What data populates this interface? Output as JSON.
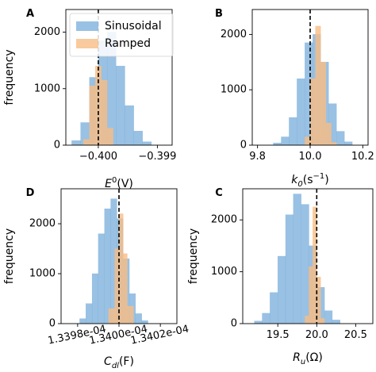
{
  "chart_data": [
    {
      "type": "bar",
      "panel": "A",
      "ylabel": "frequency",
      "xlabel": "E^0(V)",
      "xlabel_main": "E",
      "xlabel_sup": "0",
      "xlabel_rest": "(V)",
      "xticks": [
        {
          "value": -0.4,
          "label": "−0.400"
        },
        {
          "value": -0.399,
          "label": "−0.399"
        }
      ],
      "yticks": [
        {
          "value": 0,
          "label": "0"
        },
        {
          "value": 1000,
          "label": "1000"
        },
        {
          "value": 2000,
          "label": "2000"
        }
      ],
      "xlim": [
        -0.40055,
        -0.39875
      ],
      "ylim": [
        0,
        2400
      ],
      "reference_line": -0.4,
      "legend": {
        "position": "top-left",
        "entries": [
          "Sinusoidal",
          "Ramped"
        ]
      },
      "series": [
        {
          "name": "Sinusoidal",
          "color": "#7fb1dc",
          "bins": [
            {
              "x0": -0.40045,
              "x1": -0.4003,
              "value": 80
            },
            {
              "x0": -0.4003,
              "x1": -0.40015,
              "value": 400
            },
            {
              "x0": -0.40015,
              "x1": -0.4,
              "value": 1200
            },
            {
              "x0": -0.4,
              "x1": -0.39985,
              "value": 1850
            },
            {
              "x0": -0.39985,
              "x1": -0.3997,
              "value": 2000
            },
            {
              "x0": -0.3997,
              "x1": -0.39955,
              "value": 1400
            },
            {
              "x0": -0.39955,
              "x1": -0.3994,
              "value": 700
            },
            {
              "x0": -0.3994,
              "x1": -0.39925,
              "value": 250
            },
            {
              "x0": -0.39925,
              "x1": -0.3991,
              "value": 60
            }
          ]
        },
        {
          "name": "Ramped",
          "color": "#f7bd84",
          "bins": [
            {
              "x0": -0.40025,
              "x1": -0.40015,
              "value": 100
            },
            {
              "x0": -0.40015,
              "x1": -0.40005,
              "value": 1050
            },
            {
              "x0": -0.40005,
              "x1": -0.39995,
              "value": 1400
            },
            {
              "x0": -0.39995,
              "x1": -0.39985,
              "value": 1150
            },
            {
              "x0": -0.39985,
              "x1": -0.39975,
              "value": 300
            }
          ]
        }
      ]
    },
    {
      "type": "bar",
      "panel": "B",
      "ylabel": "",
      "xlabel": "k_0(s^-1)",
      "xlabel_main": "k",
      "xlabel_sub": "0",
      "xlabel_rest": "(s",
      "xlabel_sup": "−1",
      "xlabel_end": ")",
      "xticks": [
        {
          "value": 9.8,
          "label": "9.8"
        },
        {
          "value": 10.0,
          "label": "10.0"
        },
        {
          "value": 10.2,
          "label": "10.2"
        }
      ],
      "yticks": [
        {
          "value": 0,
          "label": "0"
        },
        {
          "value": 1000,
          "label": "1000"
        },
        {
          "value": 2000,
          "label": "2000"
        }
      ],
      "xlim": [
        9.78,
        10.22
      ],
      "ylim": [
        0,
        2450
      ],
      "reference_line": 10.0,
      "series": [
        {
          "name": "",
          "color": "#7fb1dc",
          "bins": [
            {
              "x0": 9.86,
              "x1": 9.89,
              "value": 40
            },
            {
              "x0": 9.89,
              "x1": 9.92,
              "value": 150
            },
            {
              "x0": 9.92,
              "x1": 9.95,
              "value": 500
            },
            {
              "x0": 9.95,
              "x1": 9.98,
              "value": 1200
            },
            {
              "x0": 9.98,
              "x1": 10.01,
              "value": 1850
            },
            {
              "x0": 10.01,
              "x1": 10.04,
              "value": 2000
            },
            {
              "x0": 10.04,
              "x1": 10.07,
              "value": 1500
            },
            {
              "x0": 10.07,
              "x1": 10.1,
              "value": 750
            },
            {
              "x0": 10.1,
              "x1": 10.13,
              "value": 250
            },
            {
              "x0": 10.13,
              "x1": 10.16,
              "value": 60
            }
          ]
        },
        {
          "name": "",
          "color": "#f7bd84",
          "bins": [
            {
              "x0": 9.98,
              "x1": 10.0,
              "value": 150
            },
            {
              "x0": 10.0,
              "x1": 10.02,
              "value": 1200
            },
            {
              "x0": 10.02,
              "x1": 10.04,
              "value": 2150
            },
            {
              "x0": 10.04,
              "x1": 10.06,
              "value": 1500
            },
            {
              "x0": 10.06,
              "x1": 10.08,
              "value": 400
            },
            {
              "x0": 10.08,
              "x1": 10.1,
              "value": 50
            }
          ]
        }
      ]
    },
    {
      "type": "bar",
      "panel": "D",
      "ylabel": "frequency",
      "xlabel": "C_dl(F)",
      "xlabel_main": "C",
      "xlabel_sub": "dl",
      "xlabel_rest": "(F)",
      "xticks": [
        {
          "value": 0.00013398,
          "label": "1.3398e-04"
        },
        {
          "value": 0.000134,
          "label": "1.3400e-04"
        },
        {
          "value": 0.00013402,
          "label": "1.3402e-04"
        }
      ],
      "yticks": [
        {
          "value": 0,
          "label": "0"
        },
        {
          "value": 1000,
          "label": "1000"
        },
        {
          "value": 2000,
          "label": "2000"
        }
      ],
      "xlim": [
        0.000133972,
        0.000134028
      ],
      "ylim": [
        0,
        2700
      ],
      "reference_line": 0.000134,
      "series": [
        {
          "name": "",
          "color": "#7fb1dc",
          "bins": [
            {
              "x0": 0.000133981,
              "x1": 0.000133984,
              "value": 100
            },
            {
              "x0": 0.000133984,
              "x1": 0.000133987,
              "value": 400
            },
            {
              "x0": 0.000133987,
              "x1": 0.00013399,
              "value": 1000
            },
            {
              "x0": 0.00013399,
              "x1": 0.000133993,
              "value": 1800
            },
            {
              "x0": 0.000133993,
              "x1": 0.000133996,
              "value": 2300
            },
            {
              "x0": 0.000133996,
              "x1": 0.000133999,
              "value": 2500
            },
            {
              "x0": 0.000133999,
              "x1": 0.000134002,
              "value": 2100
            },
            {
              "x0": 0.000134002,
              "x1": 0.000134005,
              "value": 1300
            },
            {
              "x0": 0.000134005,
              "x1": 0.000134008,
              "value": 600
            },
            {
              "x0": 0.000134008,
              "x1": 0.000134011,
              "value": 200
            },
            {
              "x0": 0.000134011,
              "x1": 0.000134014,
              "value": 60
            }
          ]
        },
        {
          "name": "",
          "color": "#f7bd84",
          "bins": [
            {
              "x0": 0.000133995,
              "x1": 0.000133998,
              "value": 300
            },
            {
              "x0": 0.000133998,
              "x1": 0.000134,
              "value": 1500
            },
            {
              "x0": 0.000134,
              "x1": 0.000134002,
              "value": 2200
            },
            {
              "x0": 0.000134002,
              "x1": 0.000134004,
              "value": 1400
            },
            {
              "x0": 0.000134004,
              "x1": 0.000134007,
              "value": 350
            }
          ]
        }
      ]
    },
    {
      "type": "bar",
      "panel": "C",
      "ylabel": "frequency",
      "xlabel": "R_u(Ω)",
      "xlabel_main": "R",
      "xlabel_sub": "u",
      "xlabel_rest": "(Ω)",
      "xticks": [
        {
          "value": 19.5,
          "label": "19.5"
        },
        {
          "value": 20.0,
          "label": "20.0"
        },
        {
          "value": 20.5,
          "label": "20.5"
        }
      ],
      "yticks": [
        {
          "value": 0,
          "label": "0"
        },
        {
          "value": 1000,
          "label": "1000"
        },
        {
          "value": 2000,
          "label": "2000"
        }
      ],
      "xlim": [
        19.05,
        20.72
      ],
      "ylim": [
        0,
        2600
      ],
      "reference_line": 20.0,
      "series": [
        {
          "name": "",
          "color": "#7fb1dc",
          "bins": [
            {
              "x0": 19.2,
              "x1": 19.3,
              "value": 50
            },
            {
              "x0": 19.3,
              "x1": 19.4,
              "value": 200
            },
            {
              "x0": 19.4,
              "x1": 19.5,
              "value": 600
            },
            {
              "x0": 19.5,
              "x1": 19.6,
              "value": 1300
            },
            {
              "x0": 19.6,
              "x1": 19.7,
              "value": 2100
            },
            {
              "x0": 19.7,
              "x1": 19.8,
              "value": 2500
            },
            {
              "x0": 19.8,
              "x1": 19.9,
              "value": 2300
            },
            {
              "x0": 19.9,
              "x1": 20.0,
              "value": 1500
            },
            {
              "x0": 20.0,
              "x1": 20.1,
              "value": 700
            },
            {
              "x0": 20.1,
              "x1": 20.2,
              "value": 250
            },
            {
              "x0": 20.2,
              "x1": 20.3,
              "value": 70
            }
          ]
        },
        {
          "name": "",
          "color": "#f7bd84",
          "bins": [
            {
              "x0": 19.85,
              "x1": 19.9,
              "value": 150
            },
            {
              "x0": 19.9,
              "x1": 19.95,
              "value": 1100
            },
            {
              "x0": 19.95,
              "x1": 20.0,
              "value": 2250
            },
            {
              "x0": 20.0,
              "x1": 20.05,
              "value": 900
            },
            {
              "x0": 20.05,
              "x1": 20.1,
              "value": 100
            }
          ]
        }
      ]
    }
  ]
}
